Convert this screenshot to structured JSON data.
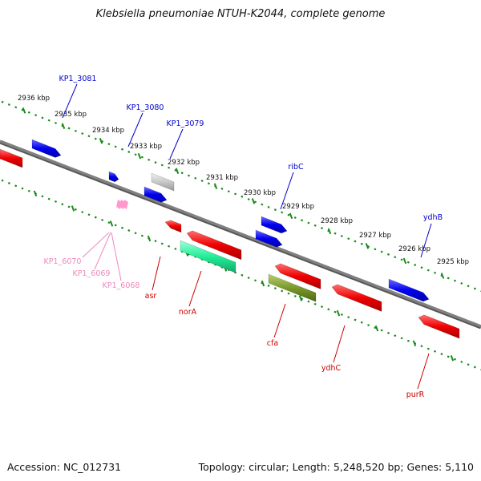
{
  "title": "Klebsiella pneumoniae NTUH-K2044, complete genome",
  "footer": {
    "accession": "Accession: NC_012731",
    "summary": "Topology: circular; Length: 5,248,520 bp; Genes: 5,110"
  },
  "colors": {
    "backbone": "#808080",
    "tick": "#1a8a1a",
    "forward_gene": "#0000ee",
    "reverse_gene": "#ee0000",
    "pseudo_gene": "#c8c8c8",
    "rna_gene": "#22ee99",
    "other_gene": "#7a9a2a",
    "forward_label": "#0000cc",
    "reverse_label": "#cc0000",
    "small_gene": "#ff99cc",
    "small_label": "#ee88bb"
  },
  "scale_labels": [
    {
      "id": "2936",
      "text": "2936 kbp"
    },
    {
      "id": "2935",
      "text": "2935 kbp"
    },
    {
      "id": "2934",
      "text": "2934 kbp"
    },
    {
      "id": "2933",
      "text": "2933 kbp"
    },
    {
      "id": "2932",
      "text": "2932 kbp"
    },
    {
      "id": "2931",
      "text": "2931 kbp"
    },
    {
      "id": "2930",
      "text": "2930 kbp"
    },
    {
      "id": "2929",
      "text": "2929 kbp"
    },
    {
      "id": "2928",
      "text": "2928 kbp"
    },
    {
      "id": "2927",
      "text": "2927 kbp"
    },
    {
      "id": "2926",
      "text": "2926 kbp"
    },
    {
      "id": "2925",
      "text": "2925 kbp"
    }
  ],
  "gene_labels": [
    {
      "id": "KP1_3081",
      "text": "KP1_3081",
      "type": "forward"
    },
    {
      "id": "KP1_3080",
      "text": "KP1_3080",
      "type": "forward"
    },
    {
      "id": "KP1_3079",
      "text": "KP1_3079",
      "type": "forward"
    },
    {
      "id": "ribC",
      "text": "ribC",
      "type": "forward"
    },
    {
      "id": "ydhB",
      "text": "ydhB",
      "type": "forward"
    },
    {
      "id": "KP1_6070",
      "text": "KP1_6070",
      "type": "small"
    },
    {
      "id": "KP1_6069",
      "text": "KP1_6069",
      "type": "small"
    },
    {
      "id": "KP1_6068",
      "text": "KP1_6068",
      "type": "small"
    },
    {
      "id": "asr",
      "text": "asr",
      "type": "reverse"
    },
    {
      "id": "norA",
      "text": "norA",
      "type": "reverse"
    },
    {
      "id": "cfa",
      "text": "cfa",
      "type": "reverse"
    },
    {
      "id": "ydhC",
      "text": "ydhC",
      "type": "reverse"
    },
    {
      "id": "purR",
      "text": "purR",
      "type": "reverse"
    }
  ]
}
